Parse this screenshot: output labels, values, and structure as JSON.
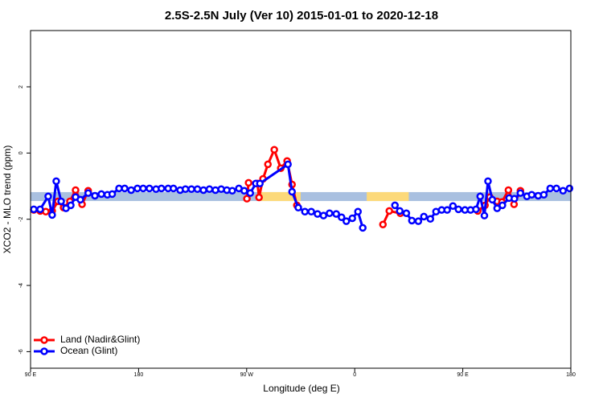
{
  "chart_data": {
    "type": "line",
    "title": "2.5S-2.5N July (Ver 10)   2015-01-01 to 2020-12-18",
    "x_label": "Longitude (deg E)",
    "y_label": "XCO2 - MLO trend (ppm)",
    "xlim": [
      90,
      540
    ],
    "ylim": [
      -6.5,
      3.7
    ],
    "xticks": [
      {
        "value": 90,
        "label": "90 E"
      },
      {
        "value": 180,
        "label": "180"
      },
      {
        "value": 270,
        "label": "90 W"
      },
      {
        "value": 360,
        "label": "0"
      },
      {
        "value": 450,
        "label": "90 E"
      },
      {
        "value": 540,
        "label": "180"
      }
    ],
    "yticks": [
      2,
      0,
      -2,
      -4,
      -6
    ],
    "strip": {
      "range": [
        -1.45,
        -1.18
      ],
      "segments": [
        {
          "from": 90,
          "to": 540,
          "color": "#a9c0e0"
        },
        {
          "from": 282,
          "to": 315,
          "color": "#fcd97a"
        },
        {
          "from": 370,
          "to": 405,
          "color": "#fcd97a"
        }
      ]
    },
    "legend": "bottom-left",
    "series": [
      {
        "name": "Land (Nadir&Glint)",
        "color": "#ff0000",
        "x": [
          92.7,
          98,
          102.7,
          108,
          112.8,
          117.5,
          122.8,
          127.5,
          132.9,
          138,
          null,
          270.2,
          271.6,
          279,
          280.3,
          283.6,
          287.7,
          293,
          298.4,
          303.7,
          307.8,
          311.8,
          null,
          383.5,
          388.8,
          398,
          null,
          462.5,
          468.5,
          472.5,
          478.6,
          482.6,
          488,
          492.7,
          498
        ],
        "values": [
          -1.72,
          -1.75,
          -1.77,
          -1.75,
          -1.46,
          -1.65,
          -1.46,
          -1.12,
          -1.55,
          -1.14,
          null,
          -1.38,
          -0.9,
          -0.92,
          -1.34,
          -0.78,
          -0.34,
          0.1,
          -0.46,
          -0.24,
          -0.95,
          -1.58,
          null,
          -2.16,
          -1.75,
          -1.82,
          null,
          -1.75,
          -1.58,
          -1.33,
          -1.46,
          -1.48,
          -1.12,
          -1.55,
          -1.14
        ]
      },
      {
        "name": "Ocean (Glint)",
        "color": "#0000ff",
        "x": [
          92.7,
          98,
          104.7,
          108,
          111.4,
          115.5,
          119.5,
          123.5,
          127.5,
          131.5,
          138,
          143.6,
          149,
          154,
          158,
          163.7,
          168.4,
          173.8,
          179,
          183.8,
          189,
          194.5,
          199,
          204.6,
          209,
          214.6,
          219,
          224,
          229,
          234,
          239,
          244,
          248.8,
          253.5,
          258,
          263.5,
          268,
          273,
          277.6,
          281,
          304.4,
          307.8,
          313,
          318.5,
          323.8,
          329,
          334,
          339,
          344.6,
          349,
          353,
          358,
          362.7,
          366.7,
          null,
          393.5,
          397.5,
          403,
          407.6,
          413,
          417.6,
          423,
          427.7,
          432.4,
          437,
          441.8,
          446.4,
          451.8,
          456.5,
          461,
          464.5,
          468,
          471,
          474.6,
          478.6,
          483,
          488.6,
          493,
          498,
          503.4,
          507.4,
          512.8,
          517.5,
          522.8,
          528,
          533.5,
          538.9
        ],
        "values": [
          -1.7,
          -1.7,
          -1.31,
          -1.87,
          -0.85,
          -1.46,
          -1.67,
          -1.58,
          -1.33,
          -1.41,
          -1.21,
          -1.29,
          -1.24,
          -1.26,
          -1.24,
          -1.07,
          -1.07,
          -1.12,
          -1.07,
          -1.07,
          -1.07,
          -1.09,
          -1.07,
          -1.07,
          -1.07,
          -1.12,
          -1.09,
          -1.09,
          -1.09,
          -1.12,
          -1.09,
          -1.12,
          -1.09,
          -1.12,
          -1.14,
          -1.07,
          -1.14,
          -1.21,
          -0.92,
          -0.92,
          -0.34,
          -1.17,
          -1.65,
          -1.77,
          -1.77,
          -1.84,
          -1.89,
          -1.82,
          -1.84,
          -1.94,
          -2.06,
          -1.97,
          -1.77,
          -2.26,
          null,
          -1.58,
          -1.75,
          -1.82,
          -2.04,
          -2.06,
          -1.92,
          -1.99,
          -1.77,
          -1.72,
          -1.72,
          -1.6,
          -1.7,
          -1.72,
          -1.72,
          -1.7,
          -1.31,
          -1.89,
          -0.85,
          -1.41,
          -1.67,
          -1.58,
          -1.36,
          -1.38,
          -1.21,
          -1.31,
          -1.26,
          -1.29,
          -1.26,
          -1.07,
          -1.07,
          -1.14,
          -1.07
        ]
      }
    ]
  }
}
